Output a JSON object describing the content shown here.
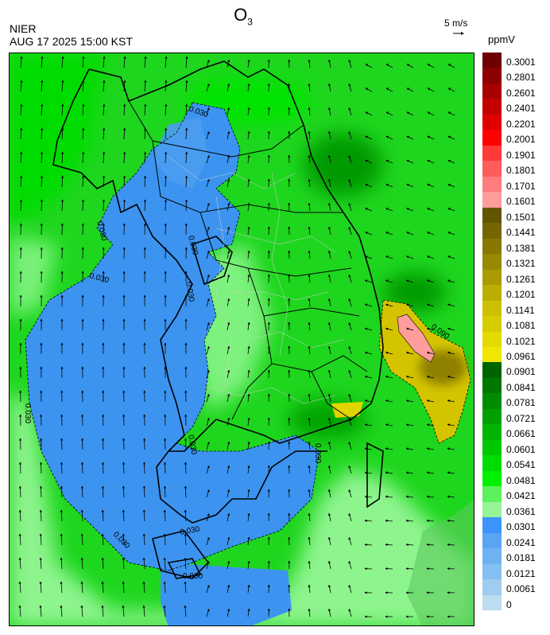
{
  "header": {
    "title_main": "O",
    "title_sub": "3",
    "agency": "NIER",
    "timestamp": "AUG 17 2025 15:00 KST",
    "wind_ref_label": "5 m/s",
    "unit": "ppmV"
  },
  "colorbar": {
    "labels": [
      "0.3001",
      "0.2801",
      "0.2601",
      "0.2401",
      "0.2201",
      "0.2001",
      "0.1901",
      "0.1801",
      "0.1701",
      "0.1601",
      "0.1501",
      "0.1441",
      "0.1381",
      "0.1321",
      "0.1261",
      "0.1201",
      "0.1141",
      "0.1081",
      "0.1021",
      "0.0961",
      "0.0901",
      "0.0841",
      "0.0781",
      "0.0721",
      "0.0661",
      "0.0601",
      "0.0541",
      "0.0481",
      "0.0421",
      "0.0361",
      "0.0301",
      "0.0241",
      "0.0181",
      "0.0121",
      "0.0061",
      "0"
    ],
    "colors": [
      "#6e0000",
      "#8c0000",
      "#a80000",
      "#c40000",
      "#e00000",
      "#ff0000",
      "#ff3a3a",
      "#ff5c5c",
      "#ff7c7c",
      "#ff9c9c",
      "#625400",
      "#746600",
      "#867800",
      "#988a00",
      "#aa9c00",
      "#bcae00",
      "#ceC000",
      "#d6cc00",
      "#e4da00",
      "#f0e600",
      "#006400",
      "#007800",
      "#008c00",
      "#00a000",
      "#00b400",
      "#00c800",
      "#00dc00",
      "#00f000",
      "#5cf25c",
      "#98f498",
      "#3c94ff",
      "#5aa4f4",
      "#6eb2f2",
      "#86c0f2",
      "#a0ccef",
      "#bcdcf0"
    ]
  },
  "map": {
    "contour_labels": [
      "0.030",
      "0.030",
      "0.030",
      "0.030",
      "0.030",
      "0.030",
      "0.030",
      "0.030",
      "0.030",
      "0.030",
      "0.030"
    ],
    "hotspot_labels": [
      "0.090"
    ]
  }
}
